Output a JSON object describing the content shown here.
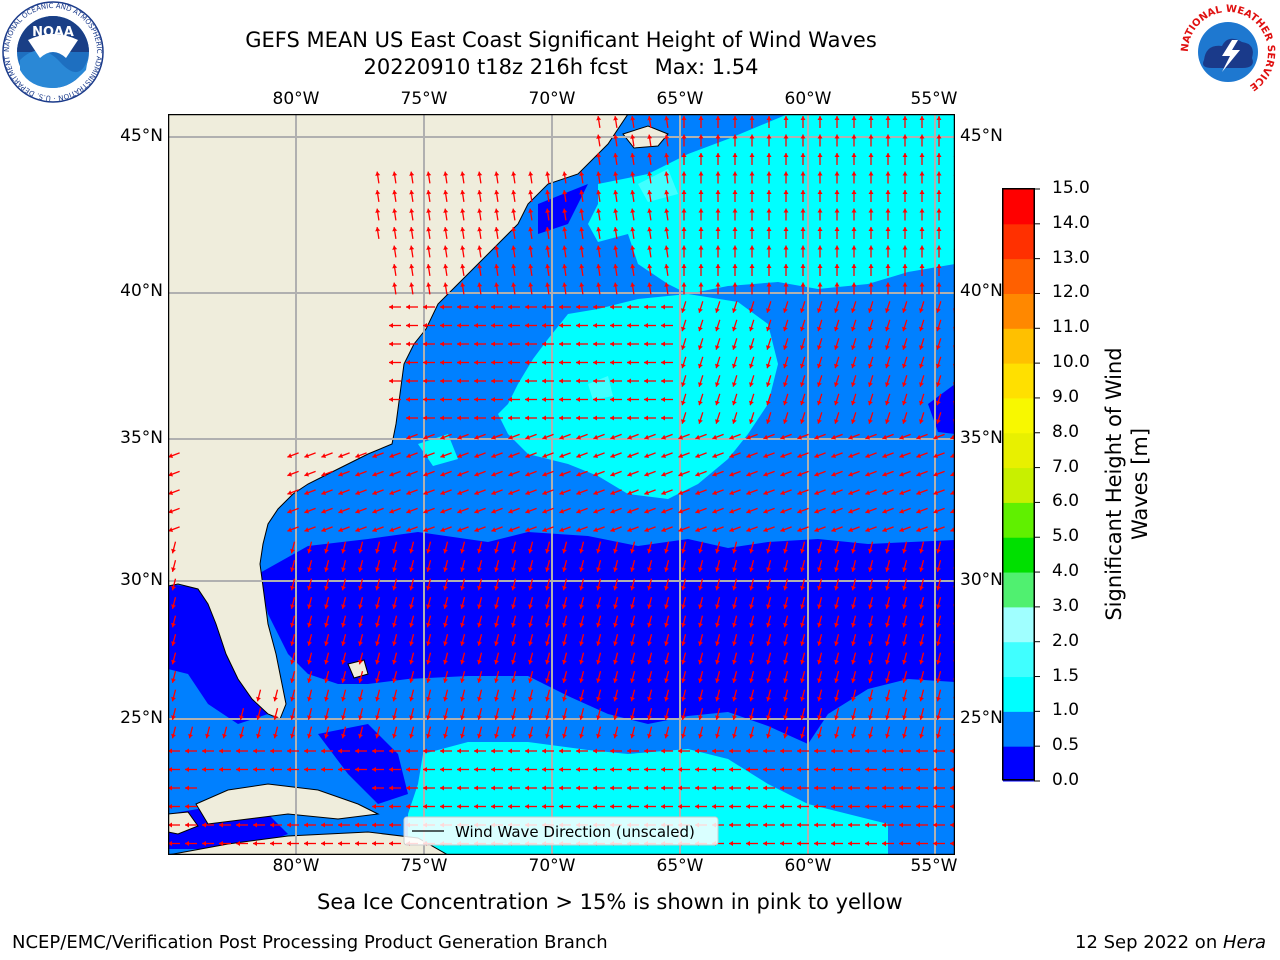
{
  "header": {
    "title_line1": "GEFS MEAN US East Coast Significant Height of Wind Waves",
    "title_line2": "20220910 t18z 216h fcst    Max: 1.54"
  },
  "logos": {
    "noaa_text": "NOAA",
    "noaa_ring": "NATIONAL OCEANIC AND ATMOSPHERIC ADMINISTRATION · U.S. DEPARTMENT OF COMMERCE",
    "nws_ring": "NATIONAL WEATHER SERVICE"
  },
  "map": {
    "lon_labels": [
      "80°W",
      "75°W",
      "70°W",
      "65°W",
      "60°W",
      "55°W"
    ],
    "lat_labels": [
      "45°N",
      "40°N",
      "35°N",
      "30°N",
      "25°N"
    ],
    "legend_label": "Wind Wave Direction (unscaled)",
    "land_color": "#efeddc",
    "arrow_color": "#ff0000"
  },
  "colorbar": {
    "title": "Significant Height of Wind Waves [m]",
    "title_line1": "Significant Height of Wind",
    "title_line2": "Waves [m]",
    "ticks": [
      "15.0",
      "14.0",
      "13.0",
      "12.0",
      "11.0",
      "10.0",
      "9.0",
      "8.0",
      "7.0",
      "6.0",
      "5.0",
      "4.0",
      "3.0",
      "2.0",
      "1.5",
      "1.0",
      "0.5",
      "0.0"
    ],
    "bins": [
      {
        "range": "0.0-0.5",
        "color": "#0000ff"
      },
      {
        "range": "0.5-1.0",
        "color": "#0080ff"
      },
      {
        "range": "1.0-1.5",
        "color": "#00ffff"
      },
      {
        "range": "1.5-2.0",
        "color": "#40ffff"
      },
      {
        "range": "2.0-3.0",
        "color": "#a0ffff"
      },
      {
        "range": "3.0-4.0",
        "color": "#50f070"
      },
      {
        "range": "4.0-5.0",
        "color": "#00e000"
      },
      {
        "range": "5.0-6.0",
        "color": "#60f000"
      },
      {
        "range": "6.0-7.0",
        "color": "#c8f000"
      },
      {
        "range": "7.0-8.0",
        "color": "#e8f000"
      },
      {
        "range": "8.0-9.0",
        "color": "#f8f800"
      },
      {
        "range": "9.0-10.0",
        "color": "#ffe000"
      },
      {
        "range": "10.0-11.0",
        "color": "#ffc000"
      },
      {
        "range": "11.0-12.0",
        "color": "#ff8800"
      },
      {
        "range": "12.0-13.0",
        "color": "#ff6000"
      },
      {
        "range": "13.0-14.0",
        "color": "#ff3000"
      },
      {
        "range": "14.0-15.0",
        "color": "#ff0000"
      }
    ]
  },
  "notes": {
    "sea_ice": "Sea Ice Concentration > 15% is shown in pink to yellow"
  },
  "footer": {
    "left": "NCEP/EMC/Verification Post Processing Product Generation Branch",
    "date": "12 Sep 2022 on ",
    "machine": "Hera"
  }
}
